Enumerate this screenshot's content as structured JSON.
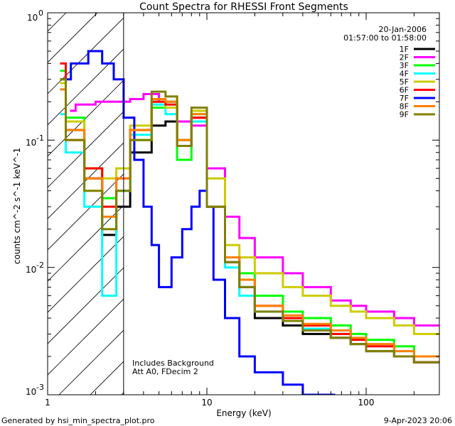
{
  "chart_data": {
    "type": "line",
    "title": "Count Spectra for RHESSI Front Segments",
    "xlabel": "Energy (keV)",
    "ylabel": "counts cm^-2 s^-1 keV^-1",
    "xscale": "log",
    "yscale": "log",
    "xlim": [
      1.2,
      330
    ],
    "ylim": [
      0.001,
      1.0
    ],
    "x_tick_labels": [
      "1",
      "10",
      "100"
    ],
    "y_tick_labels": [
      "10^0",
      "10^-1",
      "10^-2",
      "10^-3"
    ],
    "date_text": "20-Jan-2006",
    "time_range_text": "01:57:00 to 01:58:00",
    "annotation_lines": [
      "Includes Background",
      "Att A0, FDecim 2"
    ],
    "footer_left": "Generated by hsi_min_spectra_plot.pro",
    "footer_right": "9-Apr-2023 20:06",
    "hatched_region_upper_keV": 3.0,
    "legend_position": "top-right",
    "series": [
      {
        "name": "1F",
        "color": "#000000",
        "x": [
          1.3,
          1.7,
          2.2,
          2.7,
          3.3,
          4.5,
          5.5,
          6.5,
          8,
          10,
          13,
          16,
          20,
          30,
          40,
          60,
          80,
          100,
          150,
          200,
          300
        ],
        "y": [
          0.3,
          0.12,
          0.05,
          0.018,
          0.03,
          0.08,
          0.13,
          0.14,
          0.1,
          0.15,
          0.03,
          0.011,
          0.007,
          0.004,
          0.0035,
          0.003,
          0.0028,
          0.0025,
          0.0022,
          0.002,
          0.0018
        ]
      },
      {
        "name": "2F",
        "color": "#ff00ff",
        "x": [
          1.5,
          2.0,
          2.6,
          3.3,
          4.0,
          5.0,
          6.5,
          8,
          10,
          13,
          16,
          20,
          30,
          40,
          60,
          80,
          100,
          150,
          200,
          300
        ],
        "y": [
          0.17,
          0.19,
          0.2,
          0.2,
          0.21,
          0.23,
          0.2,
          0.14,
          0.13,
          0.06,
          0.025,
          0.017,
          0.012,
          0.009,
          0.007,
          0.0055,
          0.005,
          0.0045,
          0.004,
          0.0035
        ]
      },
      {
        "name": "3F",
        "color": "#00ff00",
        "x": [
          1.3,
          1.7,
          2.2,
          2.7,
          3.3,
          4.5,
          5.5,
          6.5,
          8,
          10,
          13,
          16,
          20,
          30,
          40,
          60,
          80,
          100,
          150,
          200,
          300
        ],
        "y": [
          0.35,
          0.15,
          0.06,
          0.035,
          0.04,
          0.1,
          0.18,
          0.2,
          0.07,
          0.16,
          0.03,
          0.012,
          0.009,
          0.006,
          0.0045,
          0.004,
          0.0035,
          0.003,
          0.0027,
          0.0024,
          0.002
        ]
      },
      {
        "name": "4F",
        "color": "#00ffff",
        "x": [
          1.3,
          1.7,
          2.2,
          2.7,
          3.3,
          4.5,
          5.5,
          6.5,
          8,
          10,
          13,
          16,
          20,
          30,
          40,
          60,
          80,
          100,
          150,
          200,
          300
        ],
        "y": [
          0.16,
          0.08,
          0.03,
          0.006,
          0.04,
          0.11,
          0.19,
          0.16,
          0.09,
          0.14,
          0.03,
          0.01,
          0.006,
          0.0045,
          0.0038,
          0.0033,
          0.003,
          0.0028,
          0.0025,
          0.0022,
          0.002
        ]
      },
      {
        "name": "5F",
        "color": "#cccc00",
        "x": [
          1.3,
          1.7,
          2.2,
          2.7,
          3.3,
          4.5,
          5.5,
          6.5,
          8,
          10,
          13,
          16,
          20,
          30,
          40,
          60,
          80,
          100,
          150,
          200,
          300
        ],
        "y": [
          0.28,
          0.14,
          0.06,
          0.05,
          0.06,
          0.13,
          0.2,
          0.18,
          0.1,
          0.17,
          0.05,
          0.015,
          0.012,
          0.009,
          0.007,
          0.006,
          0.005,
          0.0045,
          0.004,
          0.0035,
          0.003
        ]
      },
      {
        "name": "6F",
        "color": "#ff0000",
        "x": [
          1.3,
          1.7,
          2.2,
          2.7,
          3.3,
          4.5,
          5.5,
          6.5,
          8,
          10,
          13,
          16,
          20,
          30,
          40,
          60,
          80,
          100,
          150,
          200,
          300
        ],
        "y": [
          0.4,
          0.1,
          0.06,
          0.03,
          0.05,
          0.12,
          0.2,
          0.19,
          0.09,
          0.15,
          0.03,
          0.012,
          0.008,
          0.005,
          0.004,
          0.0035,
          0.003,
          0.0027,
          0.0024,
          0.002,
          0.0018
        ]
      },
      {
        "name": "7F",
        "color": "#0000ff",
        "x": [
          1.4,
          1.8,
          2.2,
          2.6,
          3.0,
          3.5,
          4.0,
          4.5,
          5.0,
          6.0,
          7.0,
          8.0,
          9.0,
          10.0,
          11.0,
          13,
          16,
          20,
          30,
          40,
          60
        ],
        "y": [
          0.3,
          0.4,
          0.5,
          0.4,
          0.3,
          0.15,
          0.07,
          0.03,
          0.015,
          0.007,
          0.012,
          0.02,
          0.03,
          0.04,
          0.03,
          0.008,
          0.004,
          0.002,
          0.0015,
          0.0012,
          0.001
        ]
      },
      {
        "name": "8F",
        "color": "#ff8000",
        "x": [
          1.3,
          1.7,
          2.2,
          2.7,
          3.3,
          4.5,
          5.5,
          6.5,
          8,
          10,
          13,
          16,
          20,
          30,
          40,
          60,
          80,
          100,
          150,
          200,
          300
        ],
        "y": [
          0.25,
          0.12,
          0.05,
          0.025,
          0.05,
          0.12,
          0.21,
          0.2,
          0.1,
          0.16,
          0.03,
          0.012,
          0.008,
          0.005,
          0.0042,
          0.0036,
          0.0032,
          0.0028,
          0.0025,
          0.0022,
          0.002
        ]
      },
      {
        "name": "9F",
        "color": "#808000",
        "x": [
          1.3,
          1.7,
          2.2,
          2.7,
          3.3,
          4.5,
          5.5,
          6.5,
          8,
          10,
          13,
          16,
          20,
          30,
          40,
          60,
          80,
          100,
          150,
          200,
          300
        ],
        "y": [
          0.3,
          0.1,
          0.04,
          0.02,
          0.04,
          0.1,
          0.24,
          0.22,
          0.09,
          0.18,
          0.03,
          0.011,
          0.007,
          0.0045,
          0.0038,
          0.0032,
          0.0028,
          0.0025,
          0.0022,
          0.002,
          0.0018
        ]
      }
    ]
  }
}
